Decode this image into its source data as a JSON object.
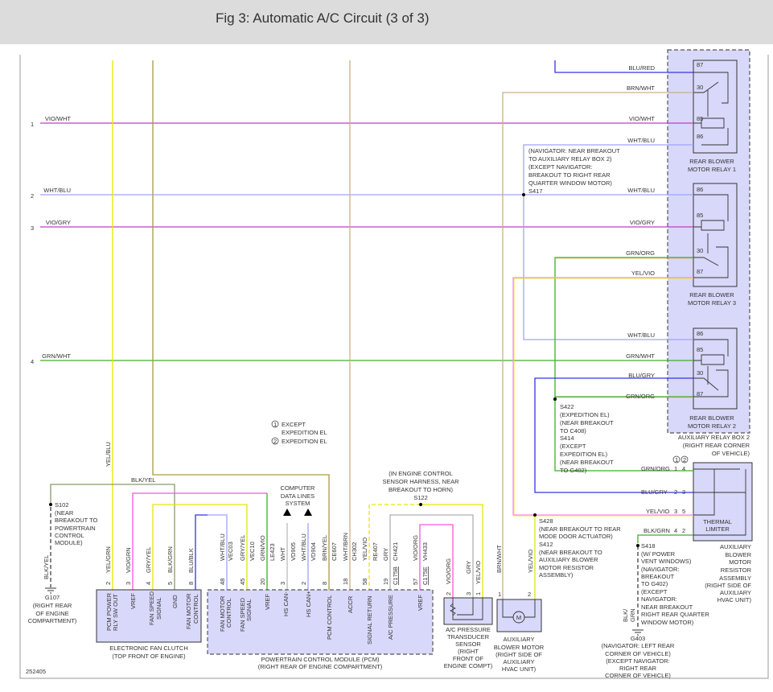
{
  "header": {
    "title": "Fig 3: Automatic A/C Circuit (3 of 3)"
  },
  "diagram_id": "252405",
  "rows": [
    "1",
    "2",
    "3",
    "4"
  ],
  "colors": {
    "vio": "#c43cc4",
    "pink": "#ff55dd",
    "yellow": "#e6e600",
    "tan": "#c8b08a",
    "light_blue": "#a0a2ff",
    "blue": "#3434e0",
    "green": "#3fae2a",
    "gray": "#b0b0b0",
    "olive": "#8a9a6a",
    "box_fill": "#d8d8fa"
  },
  "wires": {
    "vio_wht": "VIO/WHT",
    "wht_blu": "WHT/BLU",
    "vio_gry": "VIO/GRY",
    "grn_wht": "GRN/WHT",
    "blu_red": "BLU/RED",
    "brn_wht": "BRN/WHT",
    "grn_org": "GRN/ORG",
    "yel_vio": "YEL/VIO",
    "blu_gry": "BLU/GRY",
    "blk_grn": "BLK/GRN",
    "yel_blu": "YEL/BLU",
    "blk_yel": "BLK/YEL",
    "yel_grn": "YEL/GRN",
    "vio_grn": "VIO/GRN",
    "gry_yel": "GRY/YEL",
    "blk_grn_v": "BLK/GRN",
    "blu_blk": "BLU/BLK",
    "wht_blu_v": "WHT/BLU",
    "gry_yel2": "GRY/YEL",
    "grn_vio": "GRN/VIO",
    "wht": "WHT",
    "wht_blu2": "WHT/BLU",
    "brn_yel": "BRN/YEL",
    "wht_brn": "WHT/BRN",
    "yel_vio2": "YEL/VIO",
    "gry": "GRY",
    "vio_org": "VIO/ORG",
    "vio_org_s": "VIO/ORG",
    "gry_s": "GRY",
    "yel_vio_s": "YEL/VIO",
    "brn_wht_m": "BRN/WHT",
    "yel_vio_m": "YEL/VIO",
    "blk_g403": "BLK/",
    "grn_g403": "GRN"
  },
  "circuits": {
    "vec03": "VEC03",
    "vec10": "VEC10",
    "le423": "LE423",
    "vd905": "VD905",
    "vd904": "VD904",
    "ce607": "CE607",
    "ch302": "CH302",
    "re407": "RE407",
    "ch421": "CH421",
    "vh433": "VH433",
    "c175b": "C175B",
    "c175e": "C175E"
  },
  "fan_clutch": {
    "pins": [
      "2",
      "3",
      "4",
      "5",
      "8"
    ],
    "functions": [
      "PCM POWER",
      "RLY SW OUT",
      "VREF",
      "FAN SPEED",
      "SIGNAL",
      "GND",
      "FAN MOTOR",
      "CONTROL"
    ],
    "name": "ELECTRONIC FAN CLUTCH",
    "location": "(TOP FRONT OF ENGINE)"
  },
  "pcm": {
    "pins": [
      "48",
      "45",
      "20",
      "3",
      "2",
      "8",
      "18",
      "58",
      "19",
      "57"
    ],
    "functions": [
      "FAN MOTOR",
      "CONTROL",
      "FAN SPEED",
      "SIGNAL",
      "VREF",
      "HS CAN-",
      "HS CAN+",
      "PCM CONTROL",
      "ACCR",
      "SIGNAL RETURN",
      "A/C PRESSURE",
      "VREF"
    ],
    "name": "POWERTRAIN CONTROL MODULE (PCM)",
    "location": "(RIGHT REAR OF ENGINE COMPARTMENT)"
  },
  "data_lines": [
    "COMPUTER",
    "DATA LINES",
    "SYSTEM"
  ],
  "legend": {
    "item1": "EXCEPT",
    "item1b": "EXPEDITION EL",
    "item2": "EXPEDITION EL",
    "n1": "1",
    "n2": "2"
  },
  "splices": {
    "s102": [
      "S102",
      "(NEAR",
      "BREAKOUT TO",
      "POWERTRAIN",
      "CONTROL",
      "MODULE)"
    ],
    "g107": [
      "G107",
      "(RIGHT REAR",
      "OF ENGINE",
      "COMPARTMENT)"
    ],
    "s122": [
      "(IN ENGINE CONTROL",
      "SENSOR HARNESS, NEAR",
      "BREAKOUT TO HORN)",
      "S122"
    ],
    "s417": [
      "(NAVIGATOR: NEAR BREAKOUT",
      "TO AUXILIARY RELAY BOX 2)",
      "(EXCEPT NAVIGATOR:",
      "BREAKOUT TO RIGHT REAR",
      "QUARTER WINDOW MOTOR)",
      "S417"
    ],
    "s422": [
      "S422",
      "(EXPEDITION EL)",
      "(NEAR BREAKOUT",
      "TO C408)",
      "S414",
      "(EXCEPT",
      "EXPEDITION EL)",
      "(NEAR BREAKOUT",
      "TO G402)"
    ],
    "s428": [
      "S428",
      "(NEAR BREAKOUT TO REAR",
      "MODE DOOR ACTUATOR)",
      "S412",
      "(NEAR BREAKOUT TO",
      "AUXILIARY BLOWER",
      "MOTOR RESISTOR",
      "ASSEMBLY)"
    ],
    "s418": [
      "S418",
      "(W/ POWER",
      "VENT WINDOWS)",
      "(NAVIGATOR:",
      "BREAKOUT",
      "TO G402)",
      "(EXCEPT",
      "NAVIGATOR:",
      "NEAR BREAKOUT",
      "RIGHT REAR QUARTER",
      "WINDOW MOTOR)"
    ],
    "g403": [
      "G403",
      "(NAVIGATOR: LEFT REAR",
      "CORNER OF VEHICLE)",
      "(EXCEPT NAVIGATOR:",
      "RIGHT REAR",
      "CORNER OF VEHICLE)"
    ]
  },
  "relays": {
    "r1": {
      "pins": [
        "87",
        "30",
        "85",
        "86"
      ],
      "name": [
        "REAR BLOWER",
        "MOTOR RELAY 1"
      ]
    },
    "r3": {
      "pins": [
        "86",
        "85",
        "30",
        "87"
      ],
      "name": [
        "REAR BLOWER",
        "MOTOR RELAY 3"
      ]
    },
    "r2": {
      "pins": [
        "86",
        "85",
        "30",
        "87"
      ],
      "name": [
        "REAR BLOWER",
        "MOTOR RELAY 2"
      ]
    },
    "box": [
      "AUXILIARY RELAY BOX 2",
      "(RIGHT REAR CORNER",
      "OF VEHICLE)"
    ]
  },
  "resistor": {
    "pins_a": [
      "1",
      "2",
      "3",
      "4"
    ],
    "pins_b": [
      "4",
      "3",
      "5",
      "2"
    ],
    "limiter": [
      "THERMAL",
      "LIMITER"
    ],
    "name": [
      "AUXILIARY",
      "BLOWER",
      "MOTOR",
      "RESISTOR",
      "ASSEMBLY",
      "(RIGHT SIDE OF",
      "AUXILIARY",
      "HVAC UNIT)"
    ]
  },
  "sensor": {
    "pins": [
      "2",
      "3",
      "1"
    ],
    "name": [
      "A/C PRESSURE",
      "TRANSDUCER",
      "SENSOR",
      "(RIGHT",
      "FRONT OF",
      "ENGINE COMPT)"
    ]
  },
  "blower": {
    "pins": [
      "1",
      "2"
    ],
    "pin_labels": [
      "2",
      "1"
    ],
    "motor": "M",
    "name": [
      "AUXILIARY",
      "BLOWER MOTOR",
      "(RIGHT SIDE OF",
      "AUXILIARY",
      "HVAC UNIT)"
    ]
  }
}
